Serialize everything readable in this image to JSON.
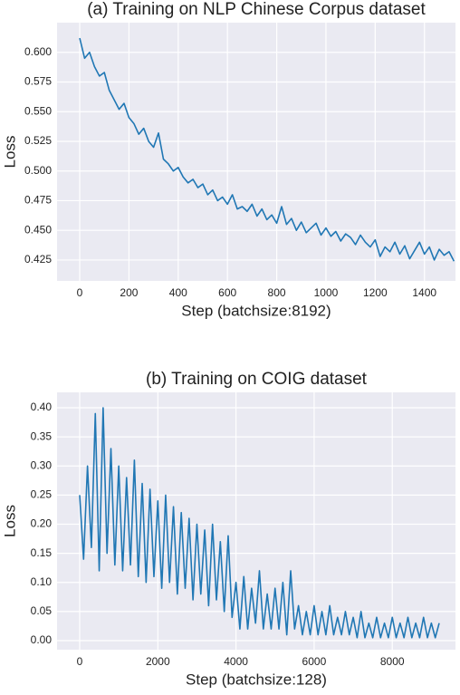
{
  "chart_data": [
    {
      "type": "line",
      "title": "(a) Training on NLP Chinese Corpus dataset",
      "xlabel": "Step (batchsize:8192)",
      "ylabel": "Loss",
      "color": "#2077b4",
      "grid": true,
      "xlim": [
        -92,
        1526
      ],
      "ylim": [
        0.4074,
        0.625
      ],
      "xticks": [
        0,
        200,
        400,
        600,
        800,
        1000,
        1200,
        1400
      ],
      "yticks": [
        0.425,
        {
          "value": 0.45,
          "label": "0.450"
        },
        0.475,
        {
          "value": 0.5,
          "label": "0.500"
        },
        0.525,
        {
          "value": 0.55,
          "label": "0.550"
        },
        0.575,
        {
          "value": 0.6,
          "label": "0.600"
        }
      ],
      "x": [
        0,
        20,
        40,
        60,
        80,
        100,
        120,
        140,
        160,
        180,
        200,
        220,
        240,
        260,
        280,
        300,
        320,
        340,
        360,
        380,
        400,
        420,
        440,
        460,
        480,
        500,
        520,
        540,
        560,
        580,
        600,
        620,
        640,
        660,
        680,
        700,
        720,
        740,
        760,
        780,
        800,
        820,
        840,
        860,
        880,
        900,
        920,
        940,
        960,
        980,
        1000,
        1020,
        1040,
        1060,
        1080,
        1100,
        1120,
        1140,
        1160,
        1180,
        1200,
        1220,
        1240,
        1260,
        1280,
        1300,
        1320,
        1340,
        1360,
        1380,
        1400,
        1420,
        1440,
        1460,
        1480,
        1500,
        1520
      ],
      "values": [
        0.612,
        0.595,
        0.6,
        0.588,
        0.58,
        0.583,
        0.568,
        0.56,
        0.552,
        0.557,
        0.545,
        0.54,
        0.531,
        0.536,
        0.525,
        0.52,
        0.532,
        0.51,
        0.506,
        0.5,
        0.503,
        0.495,
        0.49,
        0.493,
        0.486,
        0.489,
        0.48,
        0.484,
        0.475,
        0.478,
        0.472,
        0.48,
        0.468,
        0.47,
        0.466,
        0.472,
        0.462,
        0.468,
        0.459,
        0.463,
        0.456,
        0.47,
        0.455,
        0.46,
        0.45,
        0.457,
        0.448,
        0.452,
        0.456,
        0.446,
        0.452,
        0.445,
        0.449,
        0.441,
        0.447,
        0.444,
        0.438,
        0.446,
        0.44,
        0.436,
        0.442,
        0.428,
        0.436,
        0.432,
        0.44,
        0.43,
        0.437,
        0.426,
        0.433,
        0.44,
        0.43,
        0.436,
        0.425,
        0.434,
        0.429,
        0.432,
        0.424
      ]
    },
    {
      "type": "line",
      "title": "(b) Training on COIG dataset",
      "xlabel": "Step (batchsize:128)",
      "ylabel": "Loss",
      "color": "#2077b4",
      "grid": true,
      "xlim": [
        -579,
        9617
      ],
      "ylim": [
        -0.0156,
        0.4265
      ],
      "xticks": [
        0,
        2000,
        4000,
        6000,
        8000
      ],
      "yticks": [
        {
          "value": 0,
          "label": "0.00"
        },
        0.05,
        {
          "value": 0.1,
          "label": "0.10"
        },
        0.15,
        {
          "value": 0.2,
          "label": "0.20"
        },
        0.25,
        {
          "value": 0.3,
          "label": "0.30"
        },
        0.35,
        {
          "value": 0.4,
          "label": "0.40"
        }
      ],
      "x": [
        0,
        100,
        200,
        300,
        400,
        500,
        600,
        700,
        800,
        900,
        1000,
        1100,
        1200,
        1300,
        1400,
        1500,
        1600,
        1700,
        1800,
        1900,
        2000,
        2100,
        2200,
        2300,
        2400,
        2500,
        2600,
        2700,
        2800,
        2900,
        3000,
        3100,
        3200,
        3300,
        3400,
        3500,
        3600,
        3700,
        3800,
        3900,
        4000,
        4100,
        4200,
        4300,
        4400,
        4500,
        4600,
        4700,
        4800,
        4900,
        5000,
        5100,
        5200,
        5300,
        5400,
        5500,
        5600,
        5700,
        5800,
        5900,
        6000,
        6100,
        6200,
        6300,
        6400,
        6500,
        6600,
        6700,
        6800,
        6900,
        7000,
        7100,
        7200,
        7300,
        7400,
        7500,
        7600,
        7700,
        7800,
        7900,
        8000,
        8100,
        8200,
        8300,
        8400,
        8500,
        8600,
        8700,
        8800,
        8900,
        9000,
        9100,
        9200
      ],
      "values": [
        0.25,
        0.14,
        0.3,
        0.16,
        0.39,
        0.12,
        0.4,
        0.15,
        0.33,
        0.13,
        0.3,
        0.12,
        0.28,
        0.13,
        0.31,
        0.11,
        0.27,
        0.1,
        0.26,
        0.11,
        0.24,
        0.09,
        0.25,
        0.1,
        0.23,
        0.08,
        0.22,
        0.09,
        0.21,
        0.07,
        0.2,
        0.08,
        0.19,
        0.06,
        0.2,
        0.07,
        0.17,
        0.05,
        0.18,
        0.04,
        0.1,
        0.02,
        0.11,
        0.02,
        0.09,
        0.03,
        0.12,
        0.02,
        0.08,
        0.02,
        0.09,
        0.02,
        0.1,
        0.01,
        0.12,
        0.02,
        0.06,
        0.01,
        0.05,
        0.01,
        0.06,
        0.01,
        0.05,
        0.01,
        0.06,
        0.01,
        0.04,
        0.01,
        0.05,
        0.01,
        0.04,
        0.005,
        0.05,
        0.005,
        0.03,
        0.005,
        0.04,
        0.005,
        0.03,
        0.005,
        0.04,
        0.005,
        0.03,
        0.005,
        0.04,
        0.005,
        0.03,
        0.005,
        0.04,
        0.005,
        0.03,
        0.005,
        0.03
      ]
    }
  ]
}
